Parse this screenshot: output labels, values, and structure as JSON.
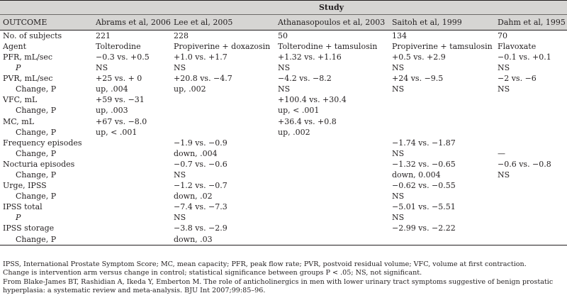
{
  "table": {
    "group_header": "Study",
    "columns": [
      "OUTCOME",
      "Abrams et al, 2006",
      "Lee et al, 2005",
      "Athanasopoulos et al, 2003",
      "Saitoh et al, 1999",
      "Dahm et al, 1995"
    ],
    "rows": [
      {
        "label": "No. of subjects",
        "indent": false,
        "cells": [
          "221",
          "228",
          "50",
          "134",
          "70"
        ]
      },
      {
        "label": "Agent",
        "indent": false,
        "cells": [
          "Tolterodine",
          "Propiverine + doxazosin",
          "Tolterodine + tamsulosin",
          "Propiverine + tamsulosin",
          "Flavoxate"
        ]
      },
      {
        "label": "PFR, mL/sec",
        "indent": false,
        "cells": [
          "−0.3 vs. +0.5",
          "+1.0 vs. +1.7",
          "+1.32 vs. +1.16",
          "+0.5 vs. +2.9",
          "−0.1 vs. +0.1"
        ]
      },
      {
        "label": "P",
        "indent": true,
        "italic": true,
        "cells": [
          "NS",
          "NS",
          "NS",
          "NS",
          "NS"
        ]
      },
      {
        "label": "PVR, mL/sec",
        "indent": false,
        "cells": [
          "+25 vs. + 0",
          "+20.8 vs. −4.7",
          "−4.2 vs. −8.2",
          "+24 vs. −9.5",
          "−2 vs. −6"
        ]
      },
      {
        "label": "Change, P",
        "indent": true,
        "cells": [
          "up, .004",
          "up, .002",
          "NS",
          "NS",
          "NS"
        ]
      },
      {
        "label": "VFC, mL",
        "indent": false,
        "cells": [
          "+59 vs. −31",
          "",
          "+100.4 vs. +30.4",
          "",
          ""
        ]
      },
      {
        "label": "Change, P",
        "indent": true,
        "cells": [
          "up, .003",
          "",
          "up, < .001",
          "",
          ""
        ]
      },
      {
        "label": "MC, mL",
        "indent": false,
        "cells": [
          "+67 vs. −8.0",
          "",
          "+36.4 vs. +0.8",
          "",
          ""
        ]
      },
      {
        "label": "Change, P",
        "indent": true,
        "cells": [
          "up, < .001",
          "",
          "up, .002",
          "",
          ""
        ]
      },
      {
        "label": "Frequency episodes",
        "indent": false,
        "cells": [
          "",
          "−1.9 vs. −0.9",
          "",
          "−1.74 vs. −1.87",
          ""
        ]
      },
      {
        "label": "Change, P",
        "indent": true,
        "cells": [
          "",
          "down, .004",
          "",
          "NS",
          "—"
        ]
      },
      {
        "label": "Nocturia episodes",
        "indent": false,
        "cells": [
          "",
          "−0.7 vs. −0.6",
          "",
          "−1.32 vs. −0.65",
          "−0.6 vs. −0.8"
        ]
      },
      {
        "label": "Change, P",
        "indent": true,
        "cells": [
          "",
          "NS",
          "",
          "down, 0.004",
          "NS"
        ]
      },
      {
        "label": "Urge, IPSS",
        "indent": false,
        "cells": [
          "",
          "−1.2 vs. −0.7",
          "",
          "−0.62 vs. −0.55",
          ""
        ]
      },
      {
        "label": "Change, P",
        "indent": true,
        "cells": [
          "",
          "down, .02",
          "",
          "NS",
          ""
        ]
      },
      {
        "label": "IPSS total",
        "indent": false,
        "cells": [
          "",
          "−7.4 vs. −7.3",
          "",
          "−5.01 vs. −5.51",
          ""
        ]
      },
      {
        "label": "P",
        "indent": true,
        "italic": true,
        "cells": [
          "",
          "NS",
          "",
          "NS",
          ""
        ]
      },
      {
        "label": "IPSS storage",
        "indent": false,
        "cells": [
          "",
          "−3.8 vs. −2.9",
          "",
          "−2.99 vs. −2.22",
          ""
        ]
      },
      {
        "label": "Change, P",
        "indent": true,
        "cells": [
          "",
          "down, .03",
          "",
          "",
          ""
        ]
      }
    ]
  },
  "footnotes": [
    "IPSS, International Prostate Symptom Score; MC, mean capacity; PFR, peak flow rate; PVR, postvoid residual volume; VFC, volume at first contraction.",
    "Change is intervention arm versus change in control; statistical significance between groups P < .05; NS, not significant.",
    "From Blake-James BT, Rashidian A, Ikeda Y, Emberton M. The role of anticholinergics in men with lower urinary tract symptoms suggestive of benign prostatic",
    "hyperplasia: a systematic review and meta-analysis. BJU Int 2007;99:85–96."
  ],
  "colors": {
    "header_fill": "#d6d5d3",
    "text": "#231f20"
  }
}
